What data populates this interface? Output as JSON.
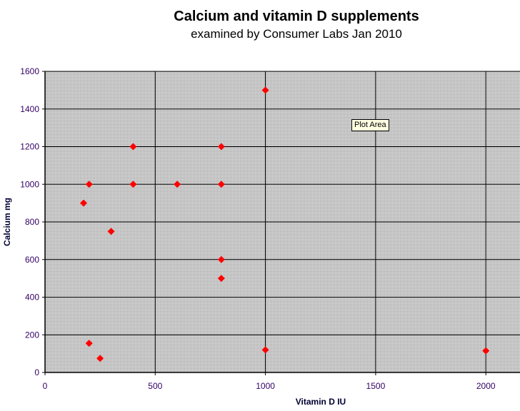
{
  "chart_data": {
    "type": "scatter",
    "title": "Calcium and vitamin D supplements",
    "subtitle": "examined by Consumer Labs Jan 2010",
    "xlabel": "Vitamin D IU",
    "ylabel": "Calcium mg",
    "xlim": [
      0,
      2150
    ],
    "ylim": [
      0,
      1600
    ],
    "xticks": [
      0,
      500,
      1000,
      1500,
      2000
    ],
    "yticks": [
      0,
      200,
      400,
      600,
      800,
      1000,
      1200,
      1400,
      1600
    ],
    "grid": true,
    "legend": "none",
    "marker": "diamond",
    "marker_color": "#ff0000",
    "plot_background": "#c0c0c0",
    "points": [
      {
        "x": 175,
        "y": 900
      },
      {
        "x": 200,
        "y": 1000
      },
      {
        "x": 200,
        "y": 155
      },
      {
        "x": 250,
        "y": 75
      },
      {
        "x": 300,
        "y": 750
      },
      {
        "x": 400,
        "y": 1200
      },
      {
        "x": 400,
        "y": 1000
      },
      {
        "x": 600,
        "y": 1000
      },
      {
        "x": 800,
        "y": 1200
      },
      {
        "x": 800,
        "y": 1000
      },
      {
        "x": 800,
        "y": 600
      },
      {
        "x": 800,
        "y": 500
      },
      {
        "x": 1000,
        "y": 1500
      },
      {
        "x": 1000,
        "y": 120
      },
      {
        "x": 2000,
        "y": 115
      }
    ]
  },
  "tooltip": "Plot Area"
}
